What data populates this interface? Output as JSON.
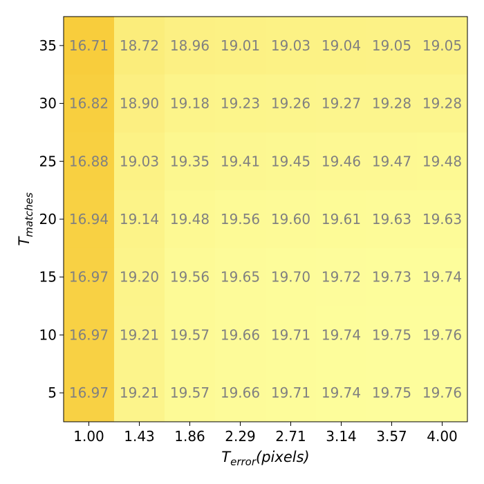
{
  "chart_data": {
    "type": "heatmap",
    "x_ticks": [
      "1.00",
      "1.43",
      "1.86",
      "2.29",
      "2.71",
      "3.14",
      "3.57",
      "4.00"
    ],
    "y_ticks": [
      "35",
      "30",
      "25",
      "20",
      "15",
      "10",
      "5"
    ],
    "xlabel": {
      "main": "T",
      "sub": "error",
      "suffix": "(pixels)"
    },
    "ylabel": {
      "main": "T",
      "sub": "matches"
    },
    "values": [
      [
        16.71,
        18.72,
        18.96,
        19.01,
        19.03,
        19.04,
        19.05,
        19.05
      ],
      [
        16.82,
        18.9,
        19.18,
        19.23,
        19.26,
        19.27,
        19.28,
        19.28
      ],
      [
        16.88,
        19.03,
        19.35,
        19.41,
        19.45,
        19.46,
        19.47,
        19.48
      ],
      [
        16.94,
        19.14,
        19.48,
        19.56,
        19.6,
        19.61,
        19.63,
        19.63
      ],
      [
        16.97,
        19.2,
        19.56,
        19.65,
        19.7,
        19.72,
        19.73,
        19.74
      ],
      [
        16.97,
        19.21,
        19.57,
        19.66,
        19.71,
        19.74,
        19.75,
        19.76
      ],
      [
        16.97,
        19.21,
        19.57,
        19.66,
        19.71,
        19.74,
        19.75,
        19.76
      ]
    ],
    "value_format": "2-decimal",
    "colormap": {
      "low": "#f8cd3c",
      "high": "#fdfd9c"
    },
    "colors": {
      "cell_text": "#808080",
      "tick_text": "#000000",
      "frame": "#000000"
    },
    "grid": false,
    "legend": "none"
  }
}
